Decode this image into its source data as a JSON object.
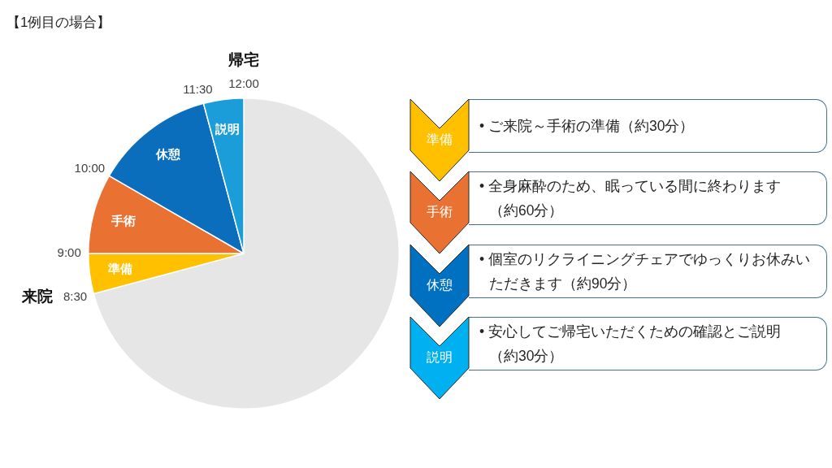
{
  "chart_data": [
    {
      "type": "pie",
      "title": "【1例目の場合】",
      "categories": [
        null,
        "準備",
        "手術",
        "休憩",
        "説明"
      ],
      "values": [
        70.83,
        4.17,
        8.33,
        12.5,
        4.17
      ],
      "colors": [
        "#e6e6e6",
        "#ffc000",
        "#e97132",
        "#0a6ebd",
        "#1b9dd9"
      ],
      "annotations": [
        "12:00",
        "8:30",
        "9:00",
        "10:00",
        "11:30",
        "帰宅",
        "来院"
      ]
    },
    {
      "type": "other",
      "categories": [
        "準備",
        "手術",
        "休憩",
        "説明"
      ],
      "colors": [
        "#ffc000",
        "#e97132",
        "#0070c0",
        "#00b0f0"
      ],
      "annotations": [
        "• ご来院～手術の準備（約30分）",
        "• 全身麻酔のため、眠っている間に終わります（約60分）",
        "• 個室のリクライニングチェアでゆっくりお休みいただきます（約90分）",
        "• 安心してご帰宅いただくための確認とご説明（約30分）"
      ]
    }
  ]
}
